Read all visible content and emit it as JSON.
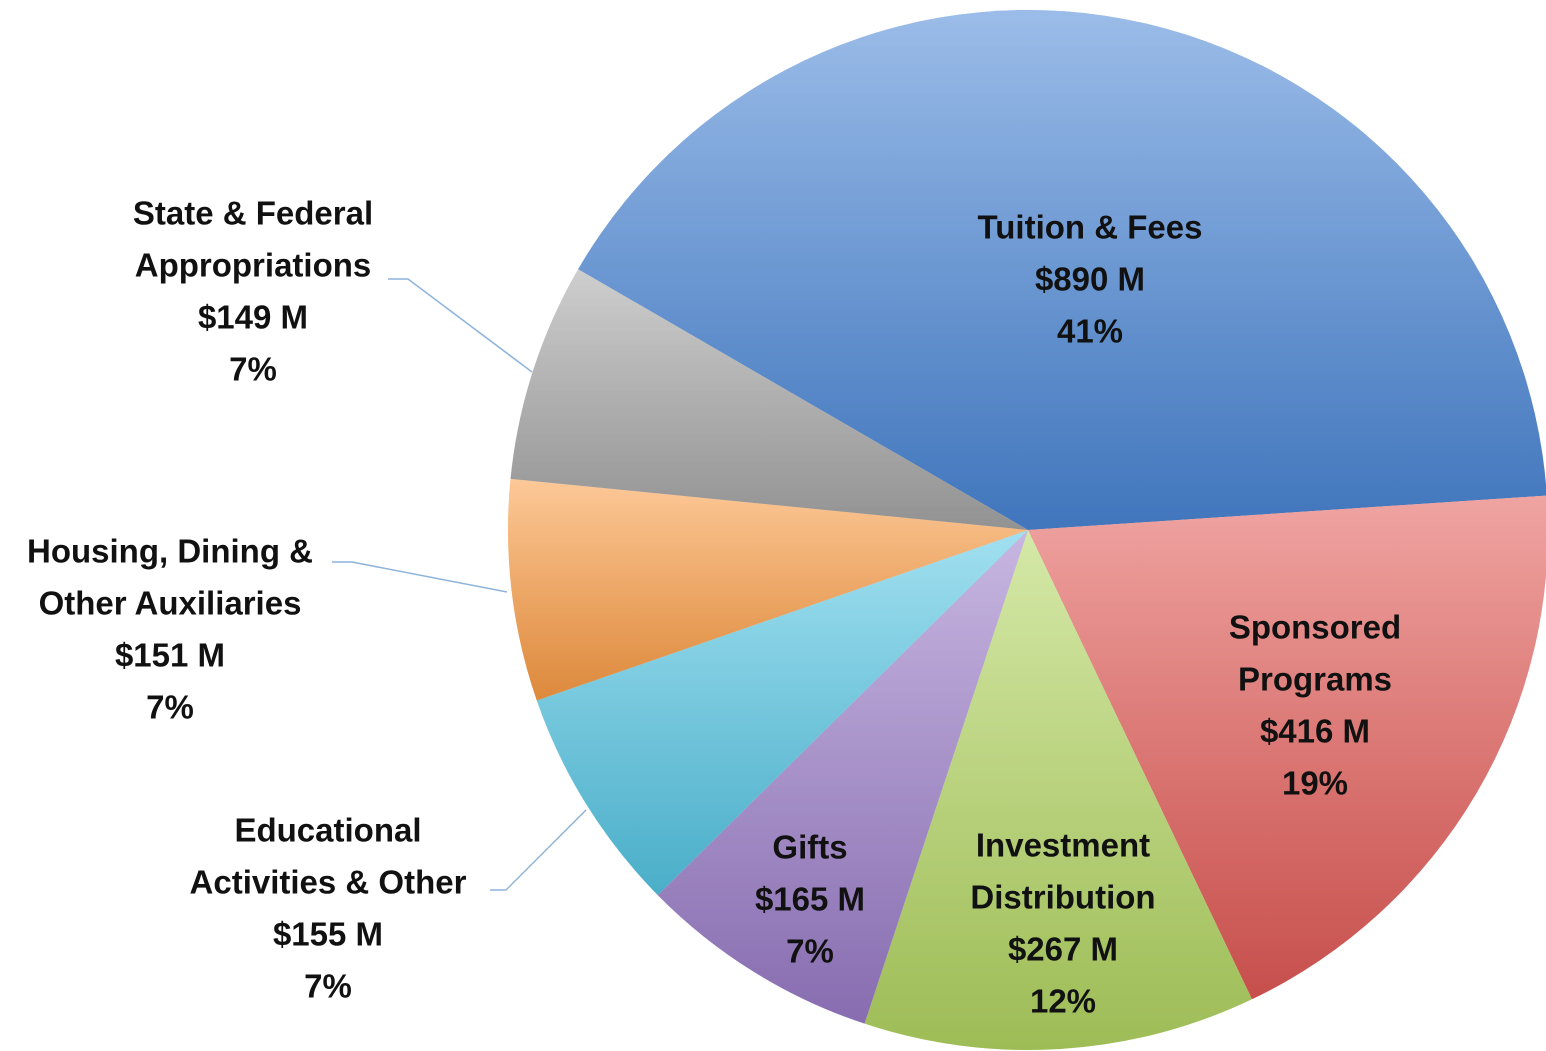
{
  "chart_data": {
    "type": "pie",
    "labels": [
      [
        "Tuition & Fees"
      ],
      [
        "Sponsored",
        "Programs"
      ],
      [
        "Investment",
        "Distribution"
      ],
      [
        "Gifts"
      ],
      [
        "Educational",
        "Activities & Other"
      ],
      [
        "Housing, Dining &",
        "Other Auxiliaries"
      ],
      [
        "State & Federal",
        "Appropriations"
      ]
    ],
    "values": [
      890,
      416,
      267,
      165,
      155,
      151,
      149
    ],
    "value_labels": [
      "$890 M",
      "$416 M",
      "$267 M",
      "$165 M",
      "$155 M",
      "$151 M",
      "$149 M"
    ],
    "percents": [
      41,
      19,
      12,
      7,
      7,
      7,
      7
    ],
    "percent_labels": [
      "41%",
      "19%",
      "12%",
      "7%",
      "7%",
      "7%",
      "7%"
    ],
    "colors": [
      "#4a86d6",
      "#e25a56",
      "#b3d662",
      "#9a7cc8",
      "#55c6e4",
      "#fb9c44",
      "#a6a6a6"
    ]
  }
}
